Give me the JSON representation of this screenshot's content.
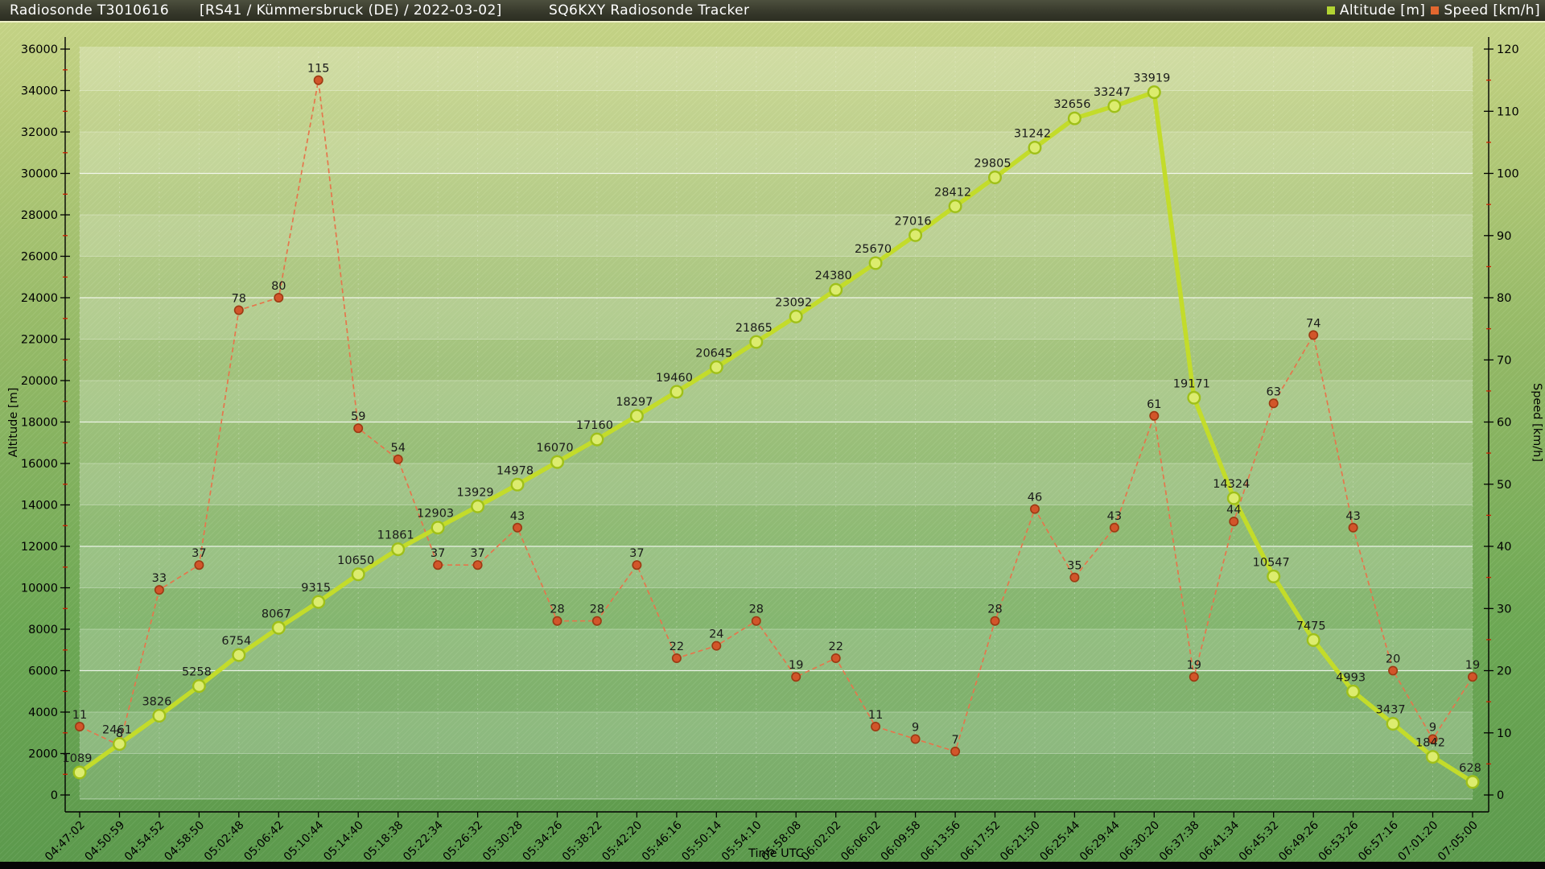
{
  "title_bar": {
    "app_title": "Radiosonde T3010616",
    "subtitle": "[RS41 / Kümmersbruck (DE) / 2022-03-02]",
    "center_title": "SQ6KXY Radiosonde Tracker",
    "legend": [
      {
        "label": "Altitude [m]",
        "color": "#b2d433"
      },
      {
        "label": "Speed [km/h]",
        "color": "#e2672f"
      }
    ]
  },
  "chart_data": {
    "type": "line",
    "title": "SQ6KXY Radiosonde Tracker",
    "xlabel": "Time UTC",
    "legend_position": "top-right",
    "grid": true,
    "x_categories": [
      "04:47:02",
      "04:50:59",
      "04:54:52",
      "04:58:50",
      "05:02:48",
      "05:06:42",
      "05:10:44",
      "05:14:40",
      "05:18:38",
      "05:22:34",
      "05:26:32",
      "05:30:28",
      "05:34:26",
      "05:38:22",
      "05:42:20",
      "05:46:16",
      "05:50:14",
      "05:54:10",
      "05:58:08",
      "06:02:02",
      "06:06:02",
      "06:09:58",
      "06:13:56",
      "06:17:52",
      "06:21:50",
      "06:25:44",
      "06:29:44",
      "06:30:20",
      "06:37:38",
      "06:41:34",
      "06:45:32",
      "06:49:26",
      "06:53:26",
      "06:57:16",
      "07:01:20",
      "07:05:00"
    ],
    "left_axis": {
      "label": "Altitude [m]",
      "min": 0,
      "max": 36000,
      "step": 2000
    },
    "right_axis": {
      "label": "Speed [km/h]",
      "min": 0,
      "max": 120,
      "step": 10
    },
    "series": [
      {
        "name": "Altitude [m]",
        "axis": "left",
        "line_color": "#c3dc2a",
        "marker_fill": "#dcec6e",
        "marker_stroke": "#9fc019",
        "line_style": "solid",
        "values": [
          1089,
          2461,
          3826,
          5258,
          6754,
          8067,
          9315,
          10650,
          11861,
          12903,
          13929,
          14978,
          16070,
          17160,
          18297,
          19460,
          20645,
          21865,
          23092,
          24380,
          25670,
          27016,
          28412,
          29805,
          31242,
          32656,
          33247,
          33919,
          19171,
          14324,
          10547,
          7475,
          4993,
          3437,
          1842,
          628
        ]
      },
      {
        "name": "Speed [km/h]",
        "axis": "right",
        "line_color": "#e5764c",
        "marker_fill": "#d2552a",
        "marker_stroke": "#9c3a13",
        "line_style": "dashed",
        "values": [
          11,
          8,
          33,
          37,
          78,
          80,
          115,
          59,
          54,
          37,
          37,
          43,
          28,
          28,
          37,
          22,
          24,
          28,
          19,
          22,
          11,
          9,
          7,
          28,
          46,
          35,
          43,
          61,
          19,
          44,
          63,
          74,
          43,
          20,
          9,
          19
        ]
      }
    ],
    "label_color": "#1a1a1a",
    "minor_tick_color": "#cc2200"
  }
}
